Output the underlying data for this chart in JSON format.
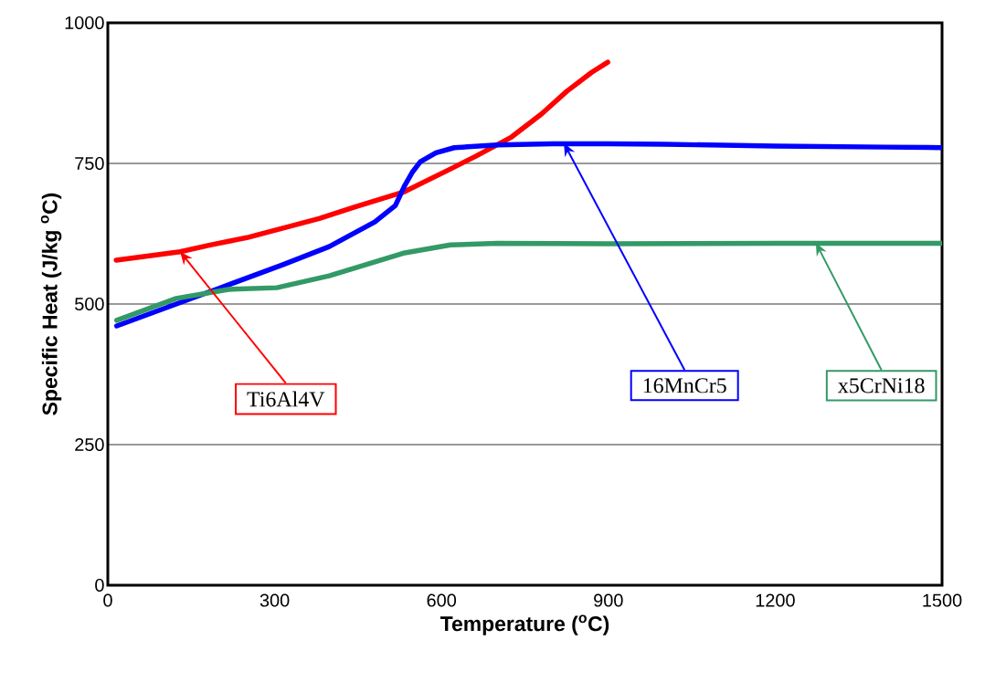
{
  "chart_data": {
    "type": "line",
    "xlabel": "Temperature ($^{o}$C)",
    "ylabel": "Specific Heat (J/kg $^{o}$C)",
    "xlim": [
      0,
      1500
    ],
    "xticks": [
      0,
      300,
      600,
      900,
      1200,
      1500
    ],
    "ylim": [
      0,
      1000
    ],
    "yticks": [
      0,
      250,
      500,
      750,
      1000
    ],
    "grid": "y",
    "marker": "none",
    "line_style": "solid",
    "series": [
      {
        "color": "#ff0000",
        "x": [
          15,
          130,
          184,
          250,
          315,
          380,
          442,
          534,
          616,
          660,
          726,
          780,
          825,
          870,
          899
        ],
        "values": [
          578,
          593,
          605,
          618,
          635,
          652,
          672,
          700,
          740,
          762,
          797,
          838,
          878,
          912,
          930
        ]
      },
      {
        "color": "#0000ff",
        "x": [
          16,
          123,
          200,
          315,
          398,
          480,
          517,
          534,
          548,
          562,
          590,
          623,
          700,
          800,
          900,
          1000,
          1200,
          1400,
          1500
        ],
        "values": [
          461,
          500,
          528,
          570,
          602,
          646,
          675,
          711,
          735,
          753,
          769,
          778,
          783,
          785,
          785,
          784,
          781,
          779,
          778
        ]
      },
      {
        "color": "#339966",
        "x": [
          16,
          123,
          217,
          304,
          398,
          534,
          616,
          700,
          900,
          1200,
          1500
        ],
        "values": [
          471,
          510,
          526,
          529,
          550,
          591,
          605,
          608,
          607,
          608,
          608
        ]
      }
    ],
    "annotations": [
      {
        "text": "Ti6Al4V",
        "x": 130,
        "y": 593
      },
      {
        "text": "16MnCr5",
        "x": 820,
        "y": 786
      },
      {
        "text": "x5CrNi18",
        "x": 1273,
        "y": 609
      }
    ]
  }
}
